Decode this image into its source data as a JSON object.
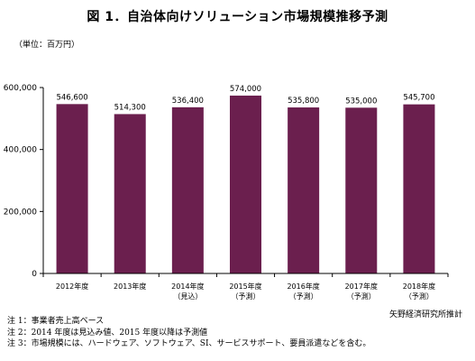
{
  "title": "図 1．自治体向けソリューション市場規模推移予測",
  "unit_label": "（単位：百万円）",
  "source": "矢野経済研究所推計",
  "notes": [
    "注 1：事業者売上高ベース",
    "注 2：2014 年度は見込み値、2015 年度以降は予測値",
    "注 3：市場規模には、ハードウェア、ソフトウェア、SI、サービスサポート、要員派遣などを含む。"
  ],
  "chart_data": {
    "type": "bar",
    "categories": [
      [
        "2012年度"
      ],
      [
        "2013年度"
      ],
      [
        "2014年度",
        "（見込）"
      ],
      [
        "2015年度",
        "（予測）"
      ],
      [
        "2016年度",
        "（予測）"
      ],
      [
        "2017年度",
        "（予測）"
      ],
      [
        "2018年度",
        "（予測）"
      ]
    ],
    "values": [
      546600,
      514300,
      536400,
      574000,
      535800,
      535000,
      545700
    ],
    "data_labels": [
      "546,600",
      "514,300",
      "536,400",
      "574,000",
      "535,800",
      "535,000",
      "545,700"
    ],
    "ylim": [
      0,
      600000
    ],
    "yticks": [
      0,
      200000,
      400000,
      600000
    ],
    "ytick_labels": [
      "0",
      "200,000",
      "400,000",
      "600,000"
    ],
    "bar_color": "#6b1f4e",
    "grid": false,
    "legend": "none"
  }
}
